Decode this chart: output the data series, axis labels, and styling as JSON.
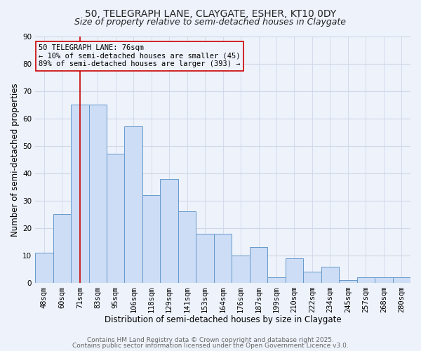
{
  "title1": "50, TELEGRAPH LANE, CLAYGATE, ESHER, KT10 0DY",
  "title2": "Size of property relative to semi-detached houses in Claygate",
  "xlabel": "Distribution of semi-detached houses by size in Claygate",
  "ylabel": "Number of semi-detached properties",
  "bin_labels": [
    "48sqm",
    "60sqm",
    "71sqm",
    "83sqm",
    "95sqm",
    "106sqm",
    "118sqm",
    "129sqm",
    "141sqm",
    "153sqm",
    "164sqm",
    "176sqm",
    "187sqm",
    "199sqm",
    "210sqm",
    "222sqm",
    "234sqm",
    "245sqm",
    "257sqm",
    "268sqm",
    "280sqm"
  ],
  "bin_counts": [
    11,
    25,
    65,
    65,
    47,
    57,
    32,
    38,
    26,
    18,
    18,
    10,
    13,
    2,
    9,
    4,
    6,
    1,
    2,
    2,
    2
  ],
  "bar_color": "#ccddf5",
  "bar_edge_color": "#6699cc",
  "ylim": [
    0,
    90
  ],
  "yticks": [
    0,
    10,
    20,
    30,
    40,
    50,
    60,
    70,
    80,
    90
  ],
  "vline_x_idx": 2,
  "vline_color": "#cc0000",
  "annotation_line1": "50 TELEGRAPH LANE: 76sqm",
  "annotation_line2": "← 10% of semi-detached houses are smaller (45)",
  "annotation_line3": "89% of semi-detached houses are larger (393) →",
  "annotation_box_color": "#cc0000",
  "bg_color": "#edf2fb",
  "footer1": "Contains HM Land Registry data © Crown copyright and database right 2025.",
  "footer2": "Contains public sector information licensed under the Open Government Licence v3.0.",
  "grid_color": "#d0d8e8",
  "title1_fontsize": 10,
  "title2_fontsize": 9,
  "axis_label_fontsize": 8.5,
  "tick_fontsize": 7.5,
  "footer_fontsize": 6.5,
  "annot_fontsize": 7.5
}
